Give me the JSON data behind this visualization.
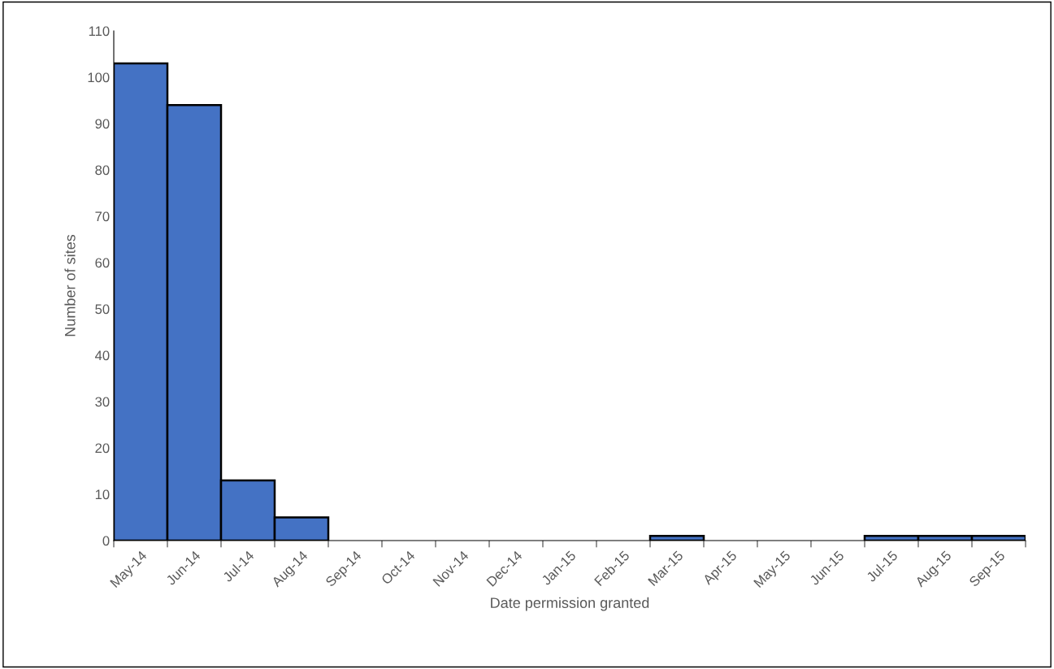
{
  "chart_data": {
    "type": "bar",
    "xlabel": "Date permission granted",
    "ylabel": "Number of sites",
    "categories": [
      "May-14",
      "Jun-14",
      "Jul-14",
      "Aug-14",
      "Sep-14",
      "Oct-14",
      "Nov-14",
      "Dec-14",
      "Jan-15",
      "Feb-15",
      "Mar-15",
      "Apr-15",
      "May-15",
      "Jun-15",
      "Jul-15",
      "Aug-15",
      "Sep-15"
    ],
    "values": [
      103,
      94,
      13,
      5,
      0,
      0,
      0,
      0,
      0,
      0,
      1,
      0,
      0,
      0,
      1,
      1,
      1
    ],
    "color": "#4472c4",
    "ylim": [
      0,
      110
    ],
    "yticks": [
      0,
      10,
      20,
      30,
      40,
      50,
      60,
      70,
      80,
      90,
      100,
      110
    ],
    "grid": false
  }
}
